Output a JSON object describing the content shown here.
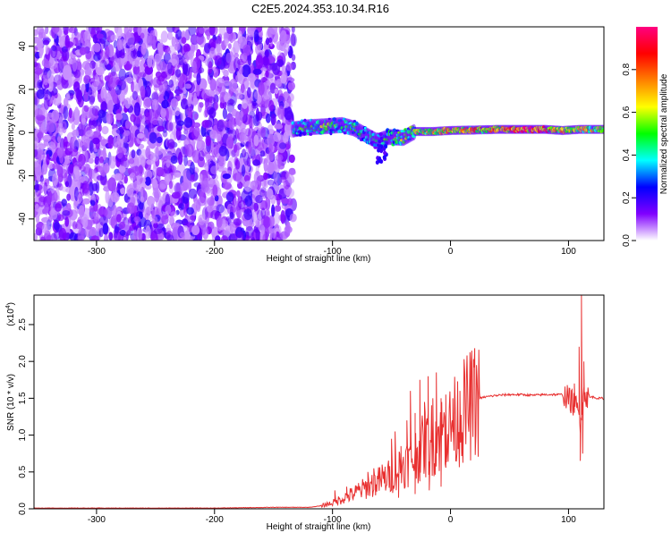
{
  "title": "C2E5.2024.353.10.34.R16",
  "chart_data": [
    {
      "type": "heatmap",
      "xlabel": "Height of straight line (km)",
      "ylabel": "Frequency (Hz)",
      "xlim": [
        -353,
        130
      ],
      "ylim": [
        -50,
        49
      ],
      "x_ticks": [
        -300,
        -200,
        -100,
        0,
        100
      ],
      "x_tick_labels": [
        "-300",
        "-200",
        "-100",
        "0",
        "100"
      ],
      "y_ticks": [
        -40,
        -20,
        0,
        20,
        40
      ],
      "y_tick_labels": [
        "-40",
        "-20",
        "0",
        "20",
        "40"
      ],
      "grid": false,
      "noise_region_x": [
        -353,
        -133
      ],
      "signal_track": [
        {
          "x": -133,
          "f": 1.5,
          "a": 0.45
        },
        {
          "x": -120,
          "f": 2.5,
          "a": 0.5
        },
        {
          "x": -105,
          "f": 3.0,
          "a": 0.55
        },
        {
          "x": -92,
          "f": 3.5,
          "a": 0.45
        },
        {
          "x": -82,
          "f": 2.0,
          "a": 0.5
        },
        {
          "x": -72,
          "f": -1.0,
          "a": 0.45
        },
        {
          "x": -62,
          "f": -4.0,
          "a": 0.4
        },
        {
          "x": -52,
          "f": -2.0,
          "a": 0.5
        },
        {
          "x": -40,
          "f": -2.5,
          "a": 0.65
        },
        {
          "x": -30,
          "f": 0.5,
          "a": 0.6
        },
        {
          "x": -15,
          "f": 0.5,
          "a": 0.7
        },
        {
          "x": 0,
          "f": 1.0,
          "a": 0.7
        },
        {
          "x": 20,
          "f": 1.2,
          "a": 0.75
        },
        {
          "x": 40,
          "f": 1.5,
          "a": 0.8
        },
        {
          "x": 60,
          "f": 1.5,
          "a": 0.95
        },
        {
          "x": 80,
          "f": 1.5,
          "a": 0.85
        },
        {
          "x": 95,
          "f": 1.0,
          "a": 0.7
        },
        {
          "x": 110,
          "f": 1.5,
          "a": 0.7
        },
        {
          "x": 130,
          "f": 1.5,
          "a": 0.65
        }
      ],
      "colorbar": {
        "label": "Normalized spectral amplitude",
        "range": [
          0,
          1
        ],
        "ticks": [
          0.0,
          0.2,
          0.4,
          0.6,
          0.8
        ],
        "tick_labels": [
          "0.0",
          "0.2",
          "0.4",
          "0.6",
          "0.8"
        ],
        "colors": [
          "#ffffff",
          "#8000ff",
          "#0000ff",
          "#00ffff",
          "#00ff00",
          "#ffff00",
          "#ff8000",
          "#ff0000",
          "#ff0080"
        ]
      }
    },
    {
      "type": "line",
      "xlabel": "Height of straight line (km)",
      "ylabel": "SNR (10 * v/v)",
      "y_multiplier": "(x10",
      "y_multiplier_exp": "4",
      "xlim": [
        -353,
        130
      ],
      "ylim": [
        0,
        2.9
      ],
      "x_ticks": [
        -300,
        -200,
        -100,
        0,
        100
      ],
      "x_tick_labels": [
        "-300",
        "-200",
        "-100",
        "0",
        "100"
      ],
      "y_ticks": [
        0.0,
        0.5,
        1.0,
        1.5,
        2.0,
        2.5
      ],
      "y_tick_labels": [
        "0.0",
        "0.5",
        "1.0",
        "1.5",
        "2.0",
        "2.5"
      ],
      "grid": false,
      "line_color": "#e83030",
      "series": [
        {
          "x": [
            -353,
            -300,
            -250,
            -200,
            -150,
            -120,
            -110,
            -100,
            -90,
            -80,
            -70,
            -60,
            -50,
            -45,
            -40,
            -35,
            -30,
            -25,
            -20,
            -15,
            -10,
            -5,
            0,
            5,
            10,
            15,
            20,
            25,
            30,
            40,
            50,
            60,
            70,
            80,
            90,
            95,
            100,
            103,
            106,
            108,
            110,
            112,
            114,
            116,
            120,
            125,
            130
          ],
          "y": [
            0.01,
            0.01,
            0.01,
            0.01,
            0.02,
            0.02,
            0.04,
            0.08,
            0.15,
            0.22,
            0.3,
            0.38,
            0.45,
            0.55,
            0.6,
            0.65,
            0.72,
            0.8,
            0.9,
            0.95,
            1.0,
            1.05,
            1.1,
            1.2,
            1.3,
            1.38,
            1.45,
            1.5,
            1.52,
            1.54,
            1.55,
            1.55,
            1.54,
            1.55,
            1.55,
            1.55,
            1.5,
            1.45,
            1.4,
            1.3,
            1.2,
            1.5,
            1.6,
            1.5,
            1.52,
            1.5,
            1.5
          ]
        }
      ],
      "spikes": [
        {
          "x": -98,
          "y": 0.25
        },
        {
          "x": -88,
          "y": 0.3
        },
        {
          "x": -78,
          "y": 0.35
        },
        {
          "x": -70,
          "y": 0.5
        },
        {
          "x": -65,
          "y": 0.55
        },
        {
          "x": -58,
          "y": 0.6
        },
        {
          "x": -50,
          "y": 0.95
        },
        {
          "x": -47,
          "y": 1.05
        },
        {
          "x": -42,
          "y": 0.85
        },
        {
          "x": -37,
          "y": 1.2
        },
        {
          "x": -34,
          "y": 1.6
        },
        {
          "x": -30,
          "y": 1.3
        },
        {
          "x": -26,
          "y": 1.75
        },
        {
          "x": -22,
          "y": 1.45
        },
        {
          "x": -19,
          "y": 1.8
        },
        {
          "x": -15,
          "y": 1.5
        },
        {
          "x": -12,
          "y": 1.85
        },
        {
          "x": -8,
          "y": 1.5
        },
        {
          "x": -4,
          "y": 1.55
        },
        {
          "x": 2,
          "y": 1.5
        },
        {
          "x": 8,
          "y": 1.6
        },
        {
          "x": 105,
          "y": 1.7
        },
        {
          "x": 109,
          "y": 2.2
        },
        {
          "x": 111,
          "y": 2.9
        },
        {
          "x": 113,
          "y": 2.0
        }
      ],
      "dips": [
        {
          "x": -44,
          "y": 0.15
        },
        {
          "x": -30,
          "y": 0.2
        },
        {
          "x": -18,
          "y": 0.25
        },
        {
          "x": -8,
          "y": 0.3
        },
        {
          "x": 110,
          "y": 0.65
        },
        {
          "x": 112,
          "y": 0.75
        }
      ]
    }
  ]
}
